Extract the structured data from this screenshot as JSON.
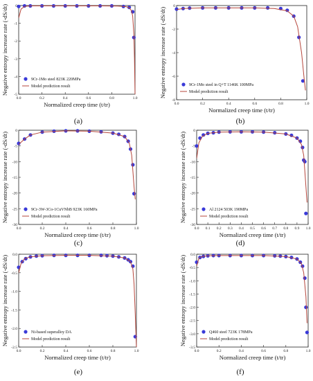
{
  "figure": {
    "panel_labels": [
      "(a)",
      "(b)",
      "(c)",
      "(d)",
      "(e)",
      "(f)"
    ]
  },
  "colors": {
    "data_points": "#3a3ad8",
    "model_line": "#b5453b",
    "axis": "#222222"
  },
  "chart_data": [
    {
      "type": "scatter",
      "panel": "(a)",
      "xlabel": "Normalized creep time (t/tr)",
      "ylabel": "Negative entropy increase rate (-dS/dt)",
      "xlim": [
        0.0,
        1.0
      ],
      "ylim": [
        -5,
        0
      ],
      "x_ticks": [
        "0.0",
        "0.2",
        "0.4",
        "0.6",
        "0.8",
        "1.0"
      ],
      "y_ticks": [
        "0",
        "-1",
        "-2",
        "-3",
        "-4",
        "-5"
      ],
      "legend_position": "bottom-left",
      "series": [
        {
          "name": "9Cr-1Mo steel 823K 220MPa",
          "kind": "points",
          "x": [
            0.0,
            0.05,
            0.1,
            0.2,
            0.3,
            0.4,
            0.5,
            0.6,
            0.7,
            0.8,
            0.9,
            0.95,
            0.98,
            0.99
          ],
          "y": [
            -0.05,
            -0.02,
            -0.02,
            -0.02,
            -0.02,
            -0.02,
            -0.02,
            -0.02,
            -0.02,
            -0.02,
            -0.05,
            -0.1,
            -0.35,
            -1.8
          ]
        },
        {
          "name": "Model prediction result",
          "kind": "line",
          "x": [
            0.0,
            0.02,
            0.05,
            0.1,
            0.3,
            0.5,
            0.7,
            0.85,
            0.92,
            0.95,
            0.97,
            0.98,
            0.99,
            0.995,
            1.0
          ],
          "y": [
            -0.7,
            -0.2,
            -0.05,
            -0.02,
            -0.02,
            -0.02,
            -0.02,
            -0.03,
            -0.06,
            -0.12,
            -0.3,
            -0.6,
            -1.6,
            -3.0,
            -5.0
          ]
        }
      ]
    },
    {
      "type": "scatter",
      "panel": "(b)",
      "xlabel": "Normalized creep time (t/tr)",
      "ylabel": "Negative entropy increase rate (-dS/dt)",
      "xlim": [
        0.0,
        1.0
      ],
      "ylim": [
        -8,
        0
      ],
      "x_ticks": [
        "0.0",
        "0.2",
        "0.4",
        "0.6",
        "0.8",
        "1.0"
      ],
      "y_ticks": [
        "0",
        "-2",
        "-4",
        "-6",
        "-8"
      ],
      "legend_position": "bottom-left",
      "series": [
        {
          "name": "9Cr-1Mo steel in Q+T 1146K 100MPa",
          "kind": "points",
          "x": [
            0.0,
            0.05,
            0.1,
            0.2,
            0.3,
            0.4,
            0.5,
            0.6,
            0.7,
            0.8,
            0.85,
            0.9,
            0.94,
            0.97
          ],
          "y": [
            -0.3,
            -0.25,
            -0.22,
            -0.2,
            -0.2,
            -0.2,
            -0.2,
            -0.2,
            -0.2,
            -0.25,
            -0.4,
            -0.9,
            -2.7,
            -6.4
          ]
        },
        {
          "name": "Model prediction result",
          "kind": "line",
          "x": [
            0.0,
            0.05,
            0.2,
            0.4,
            0.6,
            0.75,
            0.85,
            0.9,
            0.93,
            0.96,
            0.98,
            0.99
          ],
          "y": [
            -0.35,
            -0.25,
            -0.2,
            -0.2,
            -0.2,
            -0.25,
            -0.45,
            -0.9,
            -1.8,
            -4.0,
            -6.2,
            -7.2
          ]
        }
      ]
    },
    {
      "type": "scatter",
      "panel": "(c)",
      "xlabel": "Normalized creep time (t/tr)",
      "ylabel": "Negative entropy increase rate (-dS/dt)",
      "xlim": [
        0.0,
        1.0
      ],
      "ylim": [
        -30,
        0
      ],
      "x_ticks": [
        "0.0",
        "0.2",
        "0.4",
        "0.6",
        "0.8",
        "1.0"
      ],
      "y_ticks": [
        "0",
        "-5",
        "-10",
        "-15",
        "-20",
        "-25",
        "-30"
      ],
      "legend_position": "bottom-left",
      "series": [
        {
          "name": "9Cr-3W-3Co-1CuVNbB 923K 160MPa",
          "kind": "points",
          "x": [
            0.0,
            0.05,
            0.1,
            0.2,
            0.3,
            0.4,
            0.5,
            0.6,
            0.7,
            0.8,
            0.85,
            0.9,
            0.93,
            0.95,
            0.97,
            0.98
          ],
          "y": [
            -4.2,
            -2.8,
            -1.5,
            -0.6,
            -0.3,
            -0.2,
            -0.2,
            -0.3,
            -0.5,
            -0.9,
            -1.3,
            -2.0,
            -3.5,
            -6.0,
            -11.0,
            -20.2
          ]
        },
        {
          "name": "Model prediction result",
          "kind": "line",
          "x": [
            0.0,
            0.05,
            0.1,
            0.2,
            0.4,
            0.6,
            0.8,
            0.9,
            0.94,
            0.96,
            0.98,
            0.99
          ],
          "y": [
            -4.5,
            -2.8,
            -1.5,
            -0.6,
            -0.2,
            -0.3,
            -0.9,
            -2.0,
            -4.2,
            -8.0,
            -18.0,
            -22.0
          ]
        }
      ]
    },
    {
      "type": "scatter",
      "panel": "(d)",
      "xlabel": "Normalized creep time (t/tr)",
      "ylabel": "Negative entropy increase rate (-dS/dt)",
      "xlim": [
        0.0,
        1.0
      ],
      "ylim": [
        -30,
        0
      ],
      "x_ticks": [
        "0.0",
        "0.1",
        "0.2",
        "0.3",
        "0.4",
        "0.5",
        "0.6",
        "0.7",
        "0.8",
        "0.9",
        "1.0"
      ],
      "y_ticks": [
        "0",
        "-5",
        "-10",
        "-15",
        "-20",
        "-25",
        "-30"
      ],
      "legend_position": "bottom-left",
      "series": [
        {
          "name": "Al 2124 503K 190MPa",
          "kind": "points",
          "x": [
            0.0,
            0.03,
            0.06,
            0.1,
            0.15,
            0.2,
            0.3,
            0.4,
            0.5,
            0.6,
            0.7,
            0.8,
            0.85,
            0.9,
            0.93,
            0.95,
            0.96,
            0.97,
            0.98
          ],
          "y": [
            -5.0,
            -2.5,
            -1.5,
            -1.0,
            -0.8,
            -0.6,
            -0.5,
            -0.5,
            -0.5,
            -0.6,
            -0.8,
            -1.2,
            -1.6,
            -2.5,
            -3.5,
            -5.5,
            -9.5,
            -10.0,
            -26.5
          ]
        },
        {
          "name": "Model prediction result",
          "kind": "line",
          "x": [
            0.0,
            0.02,
            0.05,
            0.1,
            0.2,
            0.4,
            0.6,
            0.8,
            0.9,
            0.94,
            0.96,
            0.98,
            0.99
          ],
          "y": [
            -9.0,
            -4.0,
            -2.0,
            -1.0,
            -0.6,
            -0.5,
            -0.6,
            -1.2,
            -2.5,
            -4.5,
            -8.0,
            -18.0,
            -23.0
          ]
        }
      ]
    },
    {
      "type": "scatter",
      "panel": "(e)",
      "xlabel": "Normalized creep time (t/tr)",
      "ylabel": "Negative entropy increase rate (-dS/dt)",
      "xlim": [
        0.0,
        1.0
      ],
      "ylim": [
        -2.5,
        0
      ],
      "x_ticks": [
        "0.0",
        "0.2",
        "0.4",
        "0.6",
        "0.8",
        "1.0"
      ],
      "y_ticks": [
        "0.0",
        "-0.5",
        "-1.0",
        "-1.5",
        "-2.0",
        "-2.5"
      ],
      "legend_position": "bottom-left",
      "series": [
        {
          "name": "Ni-based superalloy DA",
          "kind": "points",
          "x": [
            0.0,
            0.03,
            0.06,
            0.1,
            0.15,
            0.2,
            0.3,
            0.4,
            0.5,
            0.6,
            0.7,
            0.75,
            0.8,
            0.85,
            0.9,
            0.93,
            0.95,
            0.97,
            0.99
          ],
          "y": [
            -0.35,
            -0.2,
            -0.12,
            -0.07,
            -0.05,
            -0.04,
            -0.03,
            -0.03,
            -0.03,
            -0.03,
            -0.03,
            -0.04,
            -0.05,
            -0.07,
            -0.1,
            -0.15,
            -0.2,
            -0.32,
            -2.22
          ]
        },
        {
          "name": "Model prediction result",
          "kind": "line",
          "x": [
            0.0,
            0.02,
            0.05,
            0.1,
            0.2,
            0.4,
            0.6,
            0.8,
            0.9,
            0.95,
            0.97,
            0.98,
            0.99,
            1.0
          ],
          "y": [
            -0.5,
            -0.25,
            -0.12,
            -0.07,
            -0.04,
            -0.03,
            -0.03,
            -0.05,
            -0.1,
            -0.2,
            -0.4,
            -0.8,
            -1.6,
            -2.5
          ]
        }
      ]
    },
    {
      "type": "scatter",
      "panel": "(f)",
      "xlabel": "Normalized creep time (t/tr)",
      "ylabel": "Negative entropy increase rate (-dS/dt)",
      "xlim": [
        0.0,
        1.0
      ],
      "ylim": [
        -3.5,
        0
      ],
      "x_ticks": [
        "0.0",
        "0.2",
        "0.4",
        "0.6",
        "0.8",
        "1.0"
      ],
      "y_ticks": [
        "0.0",
        "-0.5",
        "-1.0",
        "-1.5",
        "-2.0",
        "-2.5",
        "-3.0",
        "-3.5"
      ],
      "legend_position": "bottom-left",
      "series": [
        {
          "name": "Q460 steel 723K 178MPa",
          "kind": "points",
          "x": [
            0.0,
            0.03,
            0.06,
            0.1,
            0.15,
            0.2,
            0.3,
            0.4,
            0.5,
            0.6,
            0.7,
            0.75,
            0.8,
            0.85,
            0.9,
            0.93,
            0.95,
            0.97,
            0.98,
            0.99
          ],
          "y": [
            -0.3,
            -0.12,
            -0.08,
            -0.06,
            -0.05,
            -0.05,
            -0.05,
            -0.05,
            -0.05,
            -0.05,
            -0.06,
            -0.07,
            -0.09,
            -0.12,
            -0.18,
            -0.3,
            -0.45,
            -0.9,
            -2.0,
            -2.95
          ]
        },
        {
          "name": "Model prediction result",
          "kind": "line",
          "x": [
            0.0,
            0.02,
            0.05,
            0.1,
            0.2,
            0.4,
            0.6,
            0.8,
            0.9,
            0.94,
            0.96,
            0.98,
            0.99
          ],
          "y": [
            -0.45,
            -0.15,
            -0.08,
            -0.06,
            -0.05,
            -0.05,
            -0.05,
            -0.09,
            -0.18,
            -0.35,
            -0.7,
            -1.6,
            -2.6
          ]
        }
      ]
    }
  ]
}
